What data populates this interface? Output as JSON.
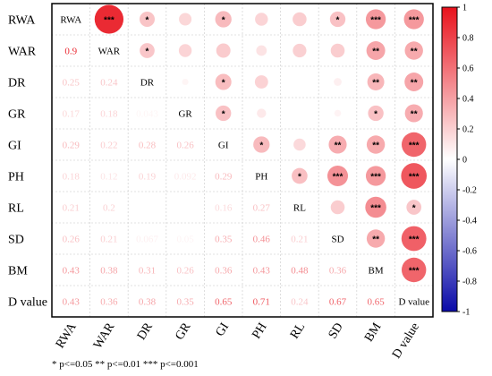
{
  "chart_data": {
    "type": "heatmap",
    "variables": [
      "RWA",
      "WAR",
      "DR",
      "GR",
      "GI",
      "PH",
      "RL",
      "SD",
      "BM",
      "D value"
    ],
    "lower_triangle_values": [
      [
        0.9
      ],
      [
        0.25,
        0.24
      ],
      [
        0.17,
        0.18,
        0.043
      ],
      [
        0.29,
        0.22,
        0.28,
        0.26
      ],
      [
        0.18,
        0.12,
        0.19,
        0.092,
        0.29
      ],
      [
        0.21,
        0.2,
        0.0,
        0.0,
        0.16,
        0.27
      ],
      [
        0.26,
        0.21,
        0.067,
        0.05,
        0.35,
        0.46,
        0.21
      ],
      [
        0.43,
        0.38,
        0.31,
        0.26,
        0.36,
        0.43,
        0.48,
        0.36
      ],
      [
        0.43,
        0.36,
        0.38,
        0.35,
        0.65,
        0.71,
        0.24,
        0.67,
        0.65
      ]
    ],
    "significance": [
      [
        "RWA",
        "WAR",
        "***"
      ],
      [
        "RWA",
        "DR",
        "*"
      ],
      [
        "RWA",
        "GI",
        "*"
      ],
      [
        "RWA",
        "SD",
        "*"
      ],
      [
        "RWA",
        "BM",
        "***"
      ],
      [
        "RWA",
        "D value",
        "***"
      ],
      [
        "WAR",
        "DR",
        "*"
      ],
      [
        "WAR",
        "BM",
        "**"
      ],
      [
        "WAR",
        "D value",
        "**"
      ],
      [
        "DR",
        "GI",
        "*"
      ],
      [
        "DR",
        "BM",
        "**"
      ],
      [
        "DR",
        "D value",
        "**"
      ],
      [
        "GR",
        "GI",
        "*"
      ],
      [
        "GR",
        "BM",
        "*"
      ],
      [
        "GR",
        "D value",
        "**"
      ],
      [
        "GI",
        "PH",
        "*"
      ],
      [
        "GI",
        "SD",
        "**"
      ],
      [
        "GI",
        "BM",
        "**"
      ],
      [
        "GI",
        "D value",
        "***"
      ],
      [
        "PH",
        "RL",
        "*"
      ],
      [
        "PH",
        "SD",
        "***"
      ],
      [
        "PH",
        "BM",
        "***"
      ],
      [
        "PH",
        "D value",
        "***"
      ],
      [
        "RL",
        "BM",
        "***"
      ],
      [
        "RL",
        "D value",
        "*"
      ],
      [
        "SD",
        "BM",
        "**"
      ],
      [
        "SD",
        "D value",
        "***"
      ],
      [
        "BM",
        "D value",
        "***"
      ]
    ],
    "colorbar": {
      "ticks": [
        "1",
        "0.8",
        "0.6",
        "0.4",
        "0.2",
        "0",
        "-0.2",
        "-0.4",
        "-0.6",
        "-0.8",
        "-1"
      ],
      "range": [
        -1,
        1
      ],
      "colors": {
        "positive": "#e8121c",
        "neutral": "#ffffff",
        "negative": "#0a0aa8"
      }
    },
    "legend_note": "* p<=0.05  ** p<=0.01  *** p<=0.001"
  }
}
